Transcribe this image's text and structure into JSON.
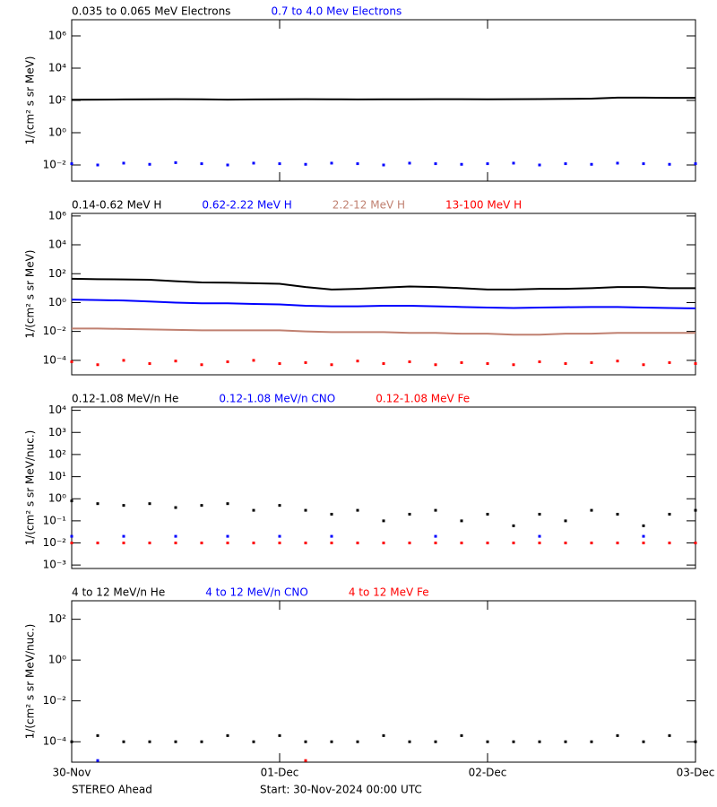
{
  "chart_data": [
    {
      "type": "scatter",
      "ylabel": "1/(cm² s sr MeV)",
      "ylog": true,
      "x": [
        0,
        3,
        6,
        9,
        12,
        15,
        18,
        21,
        24,
        27,
        30,
        33,
        36,
        39,
        42,
        45,
        48,
        51,
        54,
        57,
        60,
        63,
        66,
        69,
        72
      ],
      "xlim": [
        0,
        72
      ],
      "xticks": [
        {
          "value": 0,
          "label": "30-Nov"
        },
        {
          "value": 24,
          "label": "01-Dec"
        },
        {
          "value": 48,
          "label": "02-Dec"
        },
        {
          "value": 72,
          "label": "03-Dec"
        }
      ],
      "ylim": [
        0.001,
        10000000
      ],
      "yticks": [
        {
          "value": 0.01,
          "label": "10⁻²"
        },
        {
          "value": 1,
          "label": "10⁰"
        },
        {
          "value": 100,
          "label": "10²"
        },
        {
          "value": 10000,
          "label": "10⁴"
        },
        {
          "value": 1000000,
          "label": "10⁶"
        }
      ],
      "series": [
        {
          "name": "0.035 to 0.065 MeV Electrons",
          "color": "#000000",
          "style": "line",
          "values": [
            110,
            112,
            115,
            118,
            120,
            118,
            112,
            115,
            118,
            120,
            118,
            115,
            118,
            118,
            120,
            120,
            118,
            120,
            122,
            125,
            130,
            150,
            150,
            145,
            145
          ]
        },
        {
          "name": "0.7 to 4.0 Mev Electrons",
          "color": "#0000ff",
          "style": "points",
          "values": [
            0.012,
            0.01,
            0.013,
            0.011,
            0.014,
            0.012,
            0.01,
            0.013,
            0.012,
            0.011,
            0.013,
            0.012,
            0.01,
            0.013,
            0.012,
            0.011,
            0.012,
            0.013,
            0.01,
            0.012,
            0.011,
            0.013,
            0.012,
            0.011,
            0.012
          ]
        }
      ]
    },
    {
      "type": "scatter",
      "ylabel": "1/(cm² s sr MeV)",
      "ylog": true,
      "x": [
        0,
        3,
        6,
        9,
        12,
        15,
        18,
        21,
        24,
        27,
        30,
        33,
        36,
        39,
        42,
        45,
        48,
        51,
        54,
        57,
        60,
        63,
        66,
        69,
        72
      ],
      "xlim": [
        0,
        72
      ],
      "ylim": [
        1e-05,
        1500000
      ],
      "yticks": [
        {
          "value": 0.0001,
          "label": "10⁻⁴"
        },
        {
          "value": 0.01,
          "label": "10⁻²"
        },
        {
          "value": 1,
          "label": "10⁰"
        },
        {
          "value": 100,
          "label": "10²"
        },
        {
          "value": 10000,
          "label": "10⁴"
        },
        {
          "value": 1000000,
          "label": "10⁶"
        }
      ],
      "series": [
        {
          "name": "0.14-0.62 MeV H",
          "color": "#000000",
          "style": "line",
          "values": [
            45,
            42,
            40,
            38,
            30,
            25,
            24,
            22,
            20,
            12,
            8,
            9,
            11,
            13,
            12,
            10,
            8,
            8,
            9,
            9,
            10,
            12,
            12,
            10,
            10
          ]
        },
        {
          "name": "0.62-2.22 MeV H",
          "color": "#0000ff",
          "style": "line",
          "values": [
            1.6,
            1.5,
            1.4,
            1.2,
            1.0,
            0.9,
            0.9,
            0.8,
            0.75,
            0.6,
            0.55,
            0.55,
            0.6,
            0.6,
            0.55,
            0.5,
            0.45,
            0.42,
            0.45,
            0.48,
            0.5,
            0.5,
            0.45,
            0.42,
            0.4
          ]
        },
        {
          "name": "2.2-12 MeV H",
          "color": "#c08070",
          "style": "line",
          "values": [
            0.016,
            0.016,
            0.015,
            0.014,
            0.013,
            0.012,
            0.012,
            0.012,
            0.012,
            0.01,
            0.009,
            0.009,
            0.009,
            0.008,
            0.008,
            0.007,
            0.007,
            0.006,
            0.006,
            0.007,
            0.007,
            0.008,
            0.008,
            0.008,
            0.008
          ]
        },
        {
          "name": "13-100 MeV H",
          "color": "#ff0000",
          "style": "points",
          "values": [
            8e-05,
            5e-05,
            0.0001,
            6e-05,
            9e-05,
            5e-05,
            8e-05,
            0.0001,
            6e-05,
            7e-05,
            5e-05,
            9e-05,
            6e-05,
            8e-05,
            5e-05,
            7e-05,
            6e-05,
            5e-05,
            8e-05,
            6e-05,
            7e-05,
            9e-05,
            5e-05,
            7e-05,
            6e-05
          ]
        }
      ]
    },
    {
      "type": "scatter",
      "ylabel": "1/(cm² s sr MeV/nuc.)",
      "ylog": true,
      "x": [
        0,
        3,
        6,
        9,
        12,
        15,
        18,
        21,
        24,
        27,
        30,
        33,
        36,
        39,
        42,
        45,
        48,
        51,
        54,
        57,
        60,
        63,
        66,
        69,
        72
      ],
      "xlim": [
        0,
        72
      ],
      "ylim": [
        0.0007,
        14000
      ],
      "yticks": [
        {
          "value": 0.001,
          "label": "10⁻³"
        },
        {
          "value": 0.01,
          "label": "10⁻²"
        },
        {
          "value": 0.1,
          "label": "10⁻¹"
        },
        {
          "value": 1,
          "label": "10⁰"
        },
        {
          "value": 10,
          "label": "10¹"
        },
        {
          "value": 100,
          "label": "10²"
        },
        {
          "value": 1000,
          "label": "10³"
        },
        {
          "value": 10000,
          "label": "10⁴"
        }
      ],
      "series": [
        {
          "name": "0.12-1.08 MeV/n He",
          "color": "#000000",
          "style": "points",
          "values": [
            0.8,
            0.6,
            0.5,
            0.6,
            0.4,
            0.5,
            0.6,
            0.3,
            0.5,
            0.3,
            0.2,
            0.3,
            0.1,
            0.2,
            0.3,
            0.1,
            0.2,
            0.06,
            0.2,
            0.1,
            0.3,
            0.2,
            0.06,
            0.2,
            0.3
          ]
        },
        {
          "name": "0.12-1.08 MeV/n CNO",
          "color": "#0000ff",
          "style": "points",
          "values": [
            0.02,
            0.01,
            0.02,
            0.01,
            0.02,
            0.01,
            0.02,
            0.01,
            0.02,
            0.01,
            0.02,
            0.01,
            0.01,
            0.01,
            0.02,
            0.01,
            0.01,
            0.01,
            0.02,
            0.01,
            0.01,
            0.01,
            0.02,
            0.01,
            0.01
          ]
        },
        {
          "name": "0.12-1.08 MeV Fe",
          "color": "#ff0000",
          "style": "points",
          "values": [
            0.01,
            0.01,
            0.01,
            0.01,
            0.01,
            0.01,
            0.01,
            0.01,
            0.01,
            0.01,
            0.01,
            0.01,
            0.01,
            0.01,
            0.01,
            0.01,
            0.01,
            0.01,
            0.01,
            0.01,
            0.01,
            0.01,
            0.01,
            0.01,
            0.01
          ]
        }
      ]
    },
    {
      "type": "scatter",
      "ylabel": "1/(cm² s sr MeV/nuc.)",
      "ylog": true,
      "x": [
        0,
        3,
        6,
        9,
        12,
        15,
        18,
        21,
        24,
        27,
        30,
        33,
        36,
        39,
        42,
        45,
        48,
        51,
        54,
        57,
        60,
        63,
        66,
        69,
        72
      ],
      "xlim": [
        0,
        72
      ],
      "ylim": [
        1e-05,
        800
      ],
      "yticks": [
        {
          "value": 0.0001,
          "label": "10⁻⁴"
        },
        {
          "value": 0.01,
          "label": "10⁻²"
        },
        {
          "value": 1,
          "label": "10⁰"
        },
        {
          "value": 100,
          "label": "10²"
        }
      ],
      "series": [
        {
          "name": "4 to 12 MeV/n He",
          "color": "#000000",
          "style": "points",
          "values": [
            0.0001,
            0.0002,
            0.0001,
            0.0001,
            0.0001,
            0.0001,
            0.0002,
            0.0001,
            0.0002,
            0.0001,
            0.0001,
            0.0001,
            0.0002,
            0.0001,
            0.0001,
            0.0002,
            0.0001,
            0.0001,
            0.0001,
            0.0001,
            0.0001,
            0.0002,
            0.0001,
            0.0002,
            0.0001
          ]
        },
        {
          "name": "4 to 12 MeV/n CNO",
          "color": "#0000ff",
          "style": "points",
          "values": [
            null,
            1.2e-05,
            null,
            null,
            null,
            null,
            null,
            null,
            null,
            null,
            null,
            null,
            null,
            null,
            null,
            null,
            null,
            null,
            null,
            null,
            null,
            null,
            null,
            null,
            null
          ]
        },
        {
          "name": "4 to 12 MeV Fe",
          "color": "#ff0000",
          "style": "points",
          "values": [
            null,
            null,
            null,
            null,
            null,
            null,
            null,
            null,
            null,
            1.2e-05,
            null,
            null,
            null,
            null,
            null,
            null,
            null,
            null,
            null,
            null,
            null,
            null,
            null,
            null,
            null
          ]
        }
      ]
    }
  ],
  "footer": {
    "spacecraft": "STEREO Ahead",
    "start": "Start: 30-Nov-2024 00:00 UTC"
  }
}
